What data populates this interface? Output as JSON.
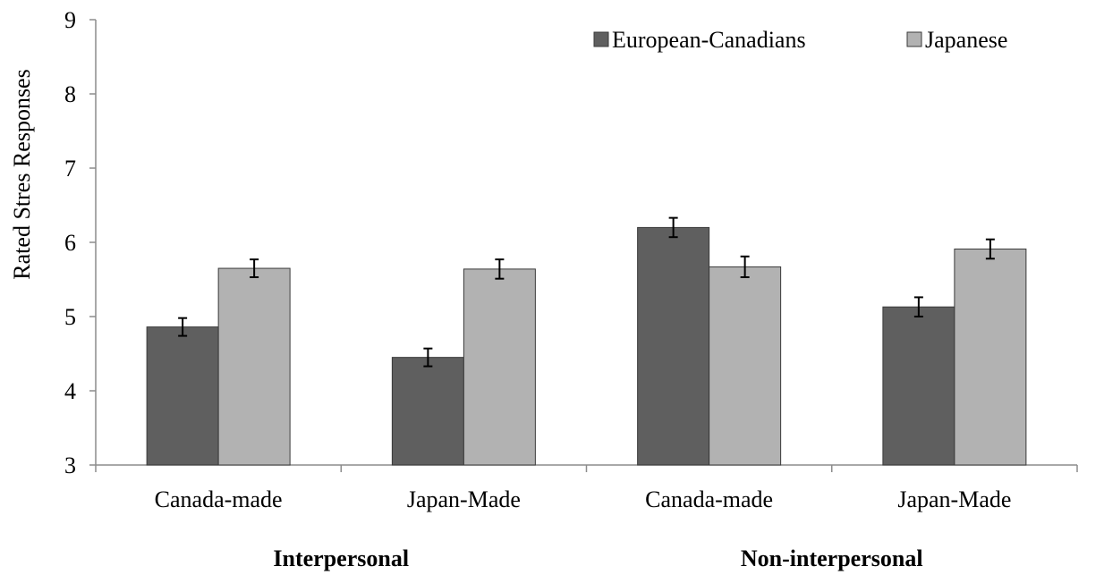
{
  "chart_data": {
    "type": "bar",
    "ylabel": "Rated Stres Responses",
    "ylim": [
      3,
      9
    ],
    "yticks": [
      3,
      4,
      5,
      6,
      7,
      8,
      9
    ],
    "grid": false,
    "legend_position": "top-right",
    "categories": [
      "Canada-made",
      "Japan-Made",
      "Canada-made",
      "Japan-Made"
    ],
    "groups": [
      {
        "label": "Interpersonal",
        "categories": [
          0,
          1
        ]
      },
      {
        "label": "Non-interpersonal",
        "categories": [
          2,
          3
        ]
      }
    ],
    "series": [
      {
        "name": "European-Canadians",
        "color": "#5f5f5f",
        "values": [
          4.86,
          4.45,
          6.2,
          5.13
        ],
        "errors": [
          0.12,
          0.12,
          0.13,
          0.13
        ]
      },
      {
        "name": "Japanese",
        "color": "#b2b2b2",
        "values": [
          5.65,
          5.64,
          5.67,
          5.91
        ],
        "errors": [
          0.12,
          0.13,
          0.14,
          0.13
        ]
      }
    ]
  }
}
